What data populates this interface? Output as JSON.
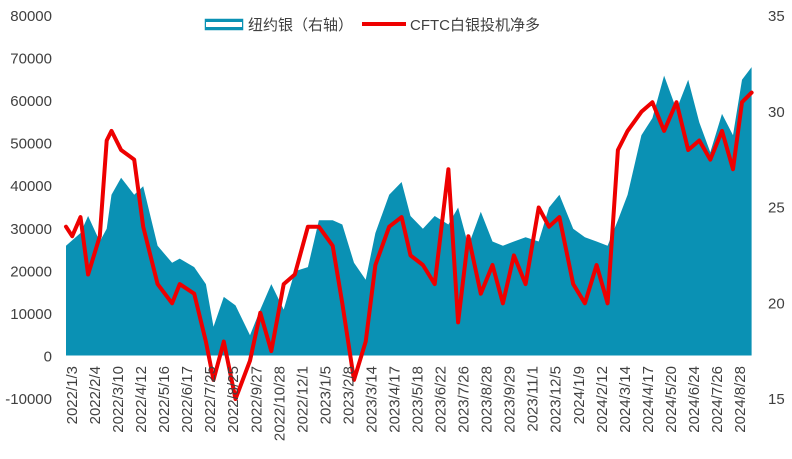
{
  "chart_data": {
    "type": "area",
    "series": [
      {
        "name": "纽约银（右轴）",
        "legend_label": "纽约银（右轴）",
        "axis": "left",
        "kind": "area",
        "color": "#0a91b4",
        "x": [
          "2022-01-03",
          "2022-01-24",
          "2022-02-04",
          "2022-02-21",
          "2022-03-03",
          "2022-03-10",
          "2022-03-24",
          "2022-04-12",
          "2022-04-25",
          "2022-05-16",
          "2022-06-06",
          "2022-06-17",
          "2022-07-08",
          "2022-07-25",
          "2022-08-05",
          "2022-08-20",
          "2022-09-06",
          "2022-09-27",
          "2022-10-12",
          "2022-10-28",
          "2022-11-15",
          "2022-12-01",
          "2022-12-20",
          "2023-01-05",
          "2023-01-25",
          "2023-02-08",
          "2023-02-25",
          "2023-03-14",
          "2023-03-28",
          "2023-04-17",
          "2023-05-05",
          "2023-05-18",
          "2023-06-05",
          "2023-06-22",
          "2023-07-12",
          "2023-07-26",
          "2023-08-10",
          "2023-08-28",
          "2023-09-14",
          "2023-09-29",
          "2023-10-15",
          "2023-11-01",
          "2023-11-20",
          "2023-12-05",
          "2023-12-20",
          "2024-01-09",
          "2024-01-26",
          "2024-02-12",
          "2024-02-28",
          "2024-03-14",
          "2024-03-28",
          "2024-04-17",
          "2024-05-03",
          "2024-05-20",
          "2024-06-07",
          "2024-06-24",
          "2024-07-10",
          "2024-07-26",
          "2024-08-12",
          "2024-08-28",
          "2024-09-10",
          "2024-09-24"
        ],
        "values": [
          26000,
          29000,
          33000,
          27000,
          30000,
          38000,
          42000,
          38000,
          40000,
          26000,
          22000,
          23000,
          21000,
          17000,
          7000,
          14000,
          12000,
          5000,
          11000,
          17000,
          11000,
          20000,
          21000,
          32000,
          32000,
          31000,
          22000,
          18000,
          29000,
          38000,
          41000,
          33000,
          30000,
          33000,
          31000,
          35000,
          26000,
          34000,
          27000,
          26000,
          27000,
          28000,
          27000,
          35000,
          38000,
          30000,
          28000,
          27000,
          26000,
          32000,
          38000,
          52000,
          56000,
          66000,
          58000,
          65000,
          55000,
          48000,
          57000,
          52000,
          65000,
          68000
        ]
      },
      {
        "name": "CFTC白银投机净多",
        "legend_label": "CFTC白银投机净多",
        "axis": "right",
        "kind": "line",
        "color": "#ee0000",
        "x": [
          "2022-01-03",
          "2022-01-12",
          "2022-01-24",
          "2022-02-04",
          "2022-02-21",
          "2022-03-03",
          "2022-03-10",
          "2022-03-24",
          "2022-04-12",
          "2022-04-25",
          "2022-05-16",
          "2022-06-06",
          "2022-06-17",
          "2022-07-08",
          "2022-07-25",
          "2022-08-05",
          "2022-08-20",
          "2022-09-06",
          "2022-09-27",
          "2022-10-12",
          "2022-10-28",
          "2022-11-15",
          "2022-12-01",
          "2022-12-20",
          "2023-01-05",
          "2023-01-25",
          "2023-02-08",
          "2023-02-25",
          "2023-03-14",
          "2023-03-28",
          "2023-04-17",
          "2023-05-05",
          "2023-05-18",
          "2023-06-05",
          "2023-06-22",
          "2023-07-12",
          "2023-07-26",
          "2023-08-10",
          "2023-08-28",
          "2023-09-14",
          "2023-09-29",
          "2023-10-15",
          "2023-11-01",
          "2023-11-20",
          "2023-12-05",
          "2023-12-20",
          "2024-01-09",
          "2024-01-26",
          "2024-02-12",
          "2024-02-28",
          "2024-03-14",
          "2024-03-28",
          "2024-04-17",
          "2024-05-03",
          "2024-05-20",
          "2024-06-07",
          "2024-06-24",
          "2024-07-10",
          "2024-07-26",
          "2024-08-12",
          "2024-08-28",
          "2024-09-10",
          "2024-09-24"
        ],
        "values": [
          24,
          23.5,
          24.5,
          21.5,
          23.5,
          28.5,
          29,
          28,
          27.5,
          24,
          21,
          20,
          21,
          20.5,
          18,
          16,
          18,
          15,
          17,
          19.5,
          17.5,
          21,
          21.5,
          24,
          24,
          23,
          20,
          16,
          18,
          22,
          24,
          24.5,
          22.5,
          22,
          21,
          27,
          19,
          23.5,
          20.5,
          22,
          20,
          22.5,
          21,
          25,
          24,
          24.5,
          21,
          20,
          22,
          20,
          28,
          29,
          30,
          30.5,
          29,
          30.5,
          28,
          28.5,
          27.5,
          29,
          27,
          30.5,
          31
        ]
      }
    ],
    "x_tick_labels": [
      "2022/1/3",
      "2022/2/4",
      "2022/3/10",
      "2022/4/12",
      "2022/5/16",
      "2022/6/17",
      "2022/7/25",
      "2022/8/25",
      "2022/9/27",
      "2022/10/28",
      "2022/12/1",
      "2023/1/5",
      "2023/2/8",
      "2023/3/14",
      "2023/4/17",
      "2023/5/18",
      "2023/6/22",
      "2023/7/26",
      "2023/8/28",
      "2023/9/29",
      "2023/11/1",
      "2023/12/5",
      "2024/1/9",
      "2024/2/12",
      "2024/3/14",
      "2024/4/17",
      "2024/5/20",
      "2024/6/24",
      "2024/7/26",
      "2024/8/28"
    ],
    "y_left_ticks": [
      -10000,
      0,
      10000,
      20000,
      30000,
      40000,
      50000,
      60000,
      70000,
      80000
    ],
    "y_right_ticks": [
      15,
      20,
      25,
      30,
      35
    ],
    "ylim_left": [
      -10000,
      80000
    ],
    "ylim_right": [
      15,
      35
    ],
    "xlim": [
      "2022-01-03",
      "2024-09-26"
    ],
    "title": "",
    "xlabel": "",
    "ylabel": "",
    "grid": false,
    "legend_position": "top-center"
  }
}
